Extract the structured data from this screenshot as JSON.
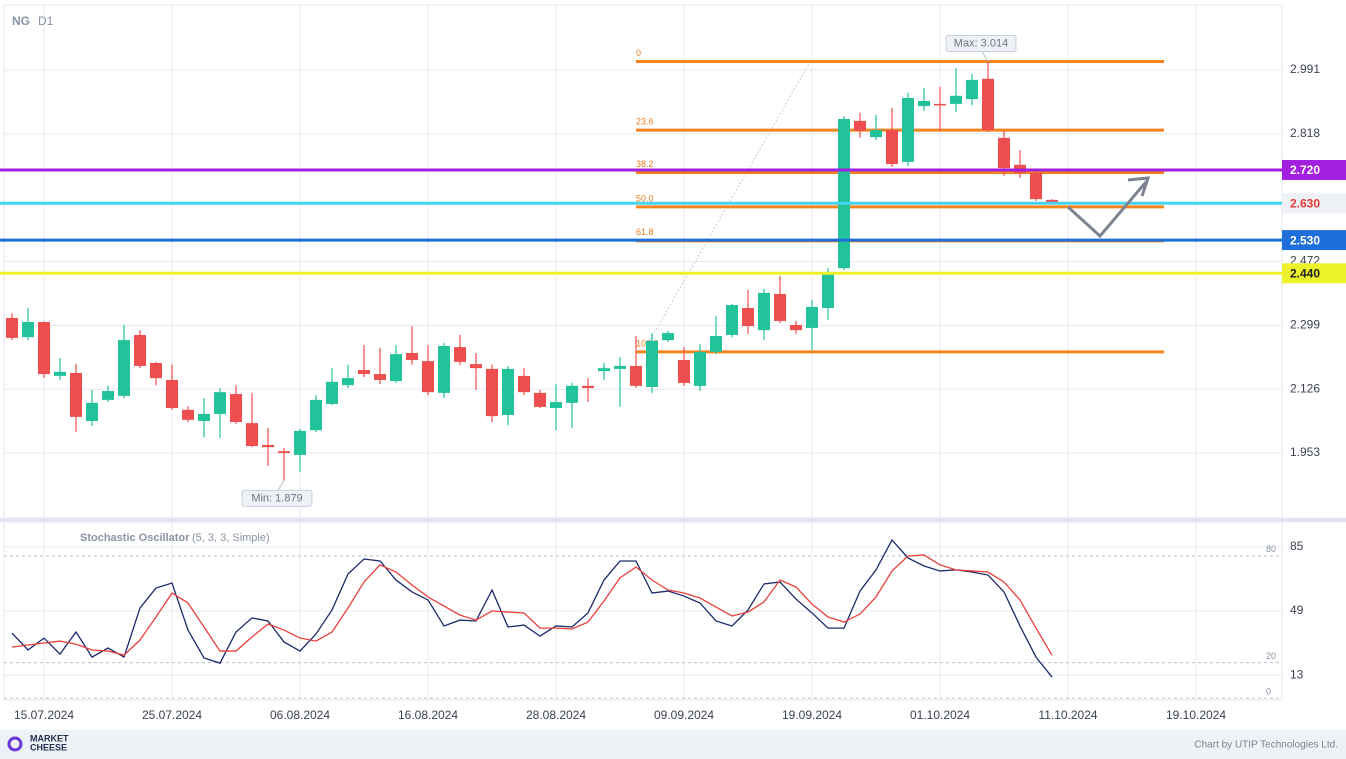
{
  "chart_data": [
    {
      "type": "candlestick",
      "title": "NG",
      "subtitle": "D1",
      "categories": [
        null,
        null,
        "15.07.2024",
        null,
        null,
        null,
        null,
        null,
        null,
        null,
        "25.07.2024",
        null,
        null,
        null,
        null,
        null,
        null,
        null,
        "06.08.2024",
        null,
        null,
        null,
        null,
        null,
        null,
        null,
        "16.08.2024",
        null,
        null,
        null,
        null,
        null,
        null,
        null,
        "28.08.2024",
        null,
        null,
        null,
        null,
        null,
        null,
        null,
        "09.09.2024",
        null,
        null,
        null,
        null,
        null,
        null,
        null,
        "19.09.2024",
        null,
        null,
        null,
        null,
        null,
        null,
        null,
        "01.10.2024",
        null,
        null,
        null,
        null,
        null,
        null,
        null,
        "11.10.2024",
        null,
        null,
        null,
        null,
        null,
        null,
        null,
        "19.10.2024"
      ],
      "open": [
        2.319,
        2.267,
        2.308,
        2.162,
        2.17,
        2.04,
        2.097,
        2.108,
        2.273,
        2.197,
        2.151,
        2.07,
        2.04,
        2.059,
        2.113,
        2.034,
        1.975,
        1.958,
        1.948,
        2.015,
        2.086,
        2.137,
        2.178,
        2.167,
        2.148,
        2.224,
        2.202,
        2.116,
        2.24,
        2.194,
        2.181,
        2.056,
        2.162,
        2.116,
        2.075,
        2.089,
        2.135,
        2.175,
        2.181,
        2.189,
        2.132,
        2.259,
        2.205,
        2.135,
        2.227,
        2.273,
        2.346,
        2.286,
        2.384,
        2.3,
        2.292,
        2.346,
        2.454,
        2.853,
        2.809,
        2.828,
        2.742,
        2.893,
        2.899,
        2.899,
        2.912,
        2.967,
        2.807,
        2.734,
        2.712,
        2.639,
        null,
        null,
        null,
        null,
        null,
        null,
        null,
        null,
        null
      ],
      "high": [
        2.332,
        2.346,
        2.31,
        2.211,
        2.194,
        2.124,
        2.135,
        2.3,
        2.286,
        2.2,
        2.192,
        2.08,
        2.102,
        2.129,
        2.137,
        2.116,
        2.021,
        1.967,
        2.018,
        2.11,
        2.183,
        2.192,
        2.246,
        2.238,
        2.246,
        2.297,
        2.246,
        2.251,
        2.273,
        2.224,
        2.192,
        2.189,
        2.183,
        2.124,
        2.14,
        2.143,
        2.156,
        2.197,
        2.213,
        2.27,
        2.278,
        2.284,
        2.24,
        2.248,
        2.324,
        2.357,
        2.395,
        2.398,
        2.433,
        2.311,
        2.368,
        2.454,
        2.866,
        2.875,
        2.869,
        2.888,
        2.929,
        2.942,
        2.945,
        2.996,
        2.98,
        3.014,
        2.826,
        2.774,
        2.715,
        2.641,
        null,
        null,
        null,
        null,
        null,
        null,
        null,
        null,
        null
      ],
      "low": [
        2.259,
        2.259,
        2.156,
        2.151,
        2.01,
        2.026,
        2.091,
        2.102,
        2.183,
        2.137,
        2.07,
        2.037,
        1.996,
        1.994,
        2.032,
        1.969,
        1.918,
        1.879,
        1.902,
        2.01,
        2.083,
        2.129,
        2.159,
        2.14,
        2.143,
        2.192,
        2.11,
        2.102,
        2.192,
        2.124,
        2.037,
        2.029,
        2.11,
        2.075,
        2.015,
        2.021,
        2.091,
        2.151,
        2.078,
        2.129,
        2.116,
        2.254,
        2.135,
        2.121,
        2.221,
        2.267,
        2.276,
        2.259,
        2.305,
        2.276,
        2.232,
        2.314,
        2.449,
        2.807,
        2.801,
        2.728,
        2.731,
        2.88,
        2.826,
        2.877,
        2.896,
        2.823,
        2.704,
        2.698,
        2.636,
        2.628,
        null,
        null,
        null,
        null,
        null,
        null,
        null,
        null,
        null
      ],
      "close": [
        2.265,
        2.308,
        2.167,
        2.173,
        2.051,
        2.089,
        2.121,
        2.259,
        2.189,
        2.156,
        2.075,
        2.043,
        2.059,
        2.118,
        2.037,
        1.972,
        1.969,
        1.953,
        2.013,
        2.097,
        2.146,
        2.156,
        2.167,
        2.151,
        2.221,
        2.205,
        2.118,
        2.243,
        2.2,
        2.183,
        2.053,
        2.181,
        2.118,
        2.078,
        2.091,
        2.135,
        2.129,
        2.183,
        2.189,
        2.135,
        2.257,
        2.278,
        2.143,
        2.227,
        2.27,
        2.354,
        2.297,
        2.387,
        2.311,
        2.286,
        2.349,
        2.441,
        2.858,
        2.826,
        2.828,
        2.736,
        2.915,
        2.907,
        2.896,
        2.921,
        2.964,
        2.828,
        2.725,
        2.712,
        2.641,
        2.63,
        null,
        null,
        null,
        null,
        null,
        null,
        null,
        null,
        null
      ],
      "up_color": "#22c39a",
      "down_color": "#ef4e4e",
      "ylim": [
        1.777,
        3.167
      ],
      "yticks": [
        1.953,
        2.126,
        2.299,
        2.472,
        2.818,
        2.991
      ],
      "grid": true,
      "annotations": [
        {
          "text": "Max: 3.014",
          "value": 3.014
        },
        {
          "text": "Min: 1.879",
          "value": 1.879
        }
      ],
      "fib_color": "#f5841f",
      "fib_levels": [
        {
          "label": "0",
          "value": 3.014
        },
        {
          "label": "23.6",
          "value": 2.828
        },
        {
          "label": "38.2",
          "value": 2.713
        },
        {
          "label": "50.0",
          "value": 2.62
        },
        {
          "label": "61.8",
          "value": 2.528
        },
        {
          "label": "100.0",
          "value": 2.227
        }
      ],
      "levels": [
        {
          "value": 2.72,
          "label": "2.720",
          "color": "#a21fe0",
          "label_color": "#a21fe0",
          "text_color": "#ffffff"
        },
        {
          "value": 2.63,
          "label": "2.630",
          "color": "#45d3f2",
          "label_color": "#eef1f6",
          "text_color": "#e53935"
        },
        {
          "value": 2.53,
          "label": "2.530",
          "color": "#1e6fd9",
          "label_color": "#1e6fd9",
          "text_color": "#ffffff"
        },
        {
          "value": 2.44,
          "label": "2.440",
          "color": "#eef22a",
          "label_color": "#eef22a",
          "text_color": "#222222"
        }
      ]
    },
    {
      "type": "line",
      "title": "Stochastic Oscillator",
      "subtitle": "(5, 3, 3, Simple)",
      "series": [
        {
          "color": "#1b2a6b",
          "values": [
            36.6,
            27.1,
            33.8,
            24.8,
            37.2,
            23.1,
            28.2,
            23.1,
            50.7,
            61.9,
            64.7,
            38.3,
            22.6,
            19.7,
            37.2,
            45.1,
            43.4,
            31.6,
            26.5,
            36.1,
            49.6,
            69.8,
            78.2,
            77.1,
            66.4,
            59.7,
            55.2,
            40.6,
            43.9,
            43.4,
            60.8,
            40.0,
            41.1,
            34.9,
            40.6,
            40.0,
            47.9,
            66.4,
            77.1,
            77.1,
            59.1,
            60.2,
            57.4,
            53.5,
            43.4,
            40.6,
            49.6,
            64.2,
            65.3,
            55.7,
            47.9,
            39.4,
            39.4,
            60.2,
            72.1,
            88.9,
            78.8,
            74.3,
            71.5,
            72.1,
            70.9,
            69.2,
            59.7,
            40.6,
            23.1,
            11.9,
            null,
            null,
            null,
            null,
            null,
            null,
            null,
            null,
            null
          ]
        },
        {
          "color": "#e8403a",
          "values": [
            28.7,
            29.9,
            31.0,
            32.1,
            30.4,
            27.1,
            26.5,
            24.2,
            32.7,
            45.6,
            59.1,
            53.5,
            40.0,
            26.5,
            26.5,
            34.4,
            41.7,
            38.3,
            33.8,
            32.1,
            37.2,
            50.7,
            65.3,
            74.9,
            70.9,
            63.6,
            56.9,
            51.8,
            46.7,
            43.9,
            49.0,
            48.4,
            47.9,
            39.4,
            39.4,
            38.9,
            42.8,
            54.6,
            67.6,
            73.7,
            66.4,
            60.8,
            59.1,
            56.3,
            51.2,
            46.2,
            48.4,
            54.1,
            66.4,
            62.5,
            52.9,
            45.6,
            42.8,
            47.3,
            56.9,
            71.5,
            79.9,
            80.5,
            74.9,
            72.1,
            71.5,
            70.9,
            65.3,
            55.2,
            39.4,
            24.2,
            null,
            null,
            null,
            null,
            null,
            null,
            null,
            null,
            null
          ]
        }
      ],
      "ylim": [
        -1,
        99
      ],
      "yticks": [
        13,
        49,
        85
      ],
      "levels": [
        0,
        20,
        80
      ],
      "grid": true
    }
  ],
  "footer": {
    "logo": [
      "MARKET",
      "CHEESE"
    ],
    "credit": "Chart by UTIP Technologies Ltd."
  }
}
